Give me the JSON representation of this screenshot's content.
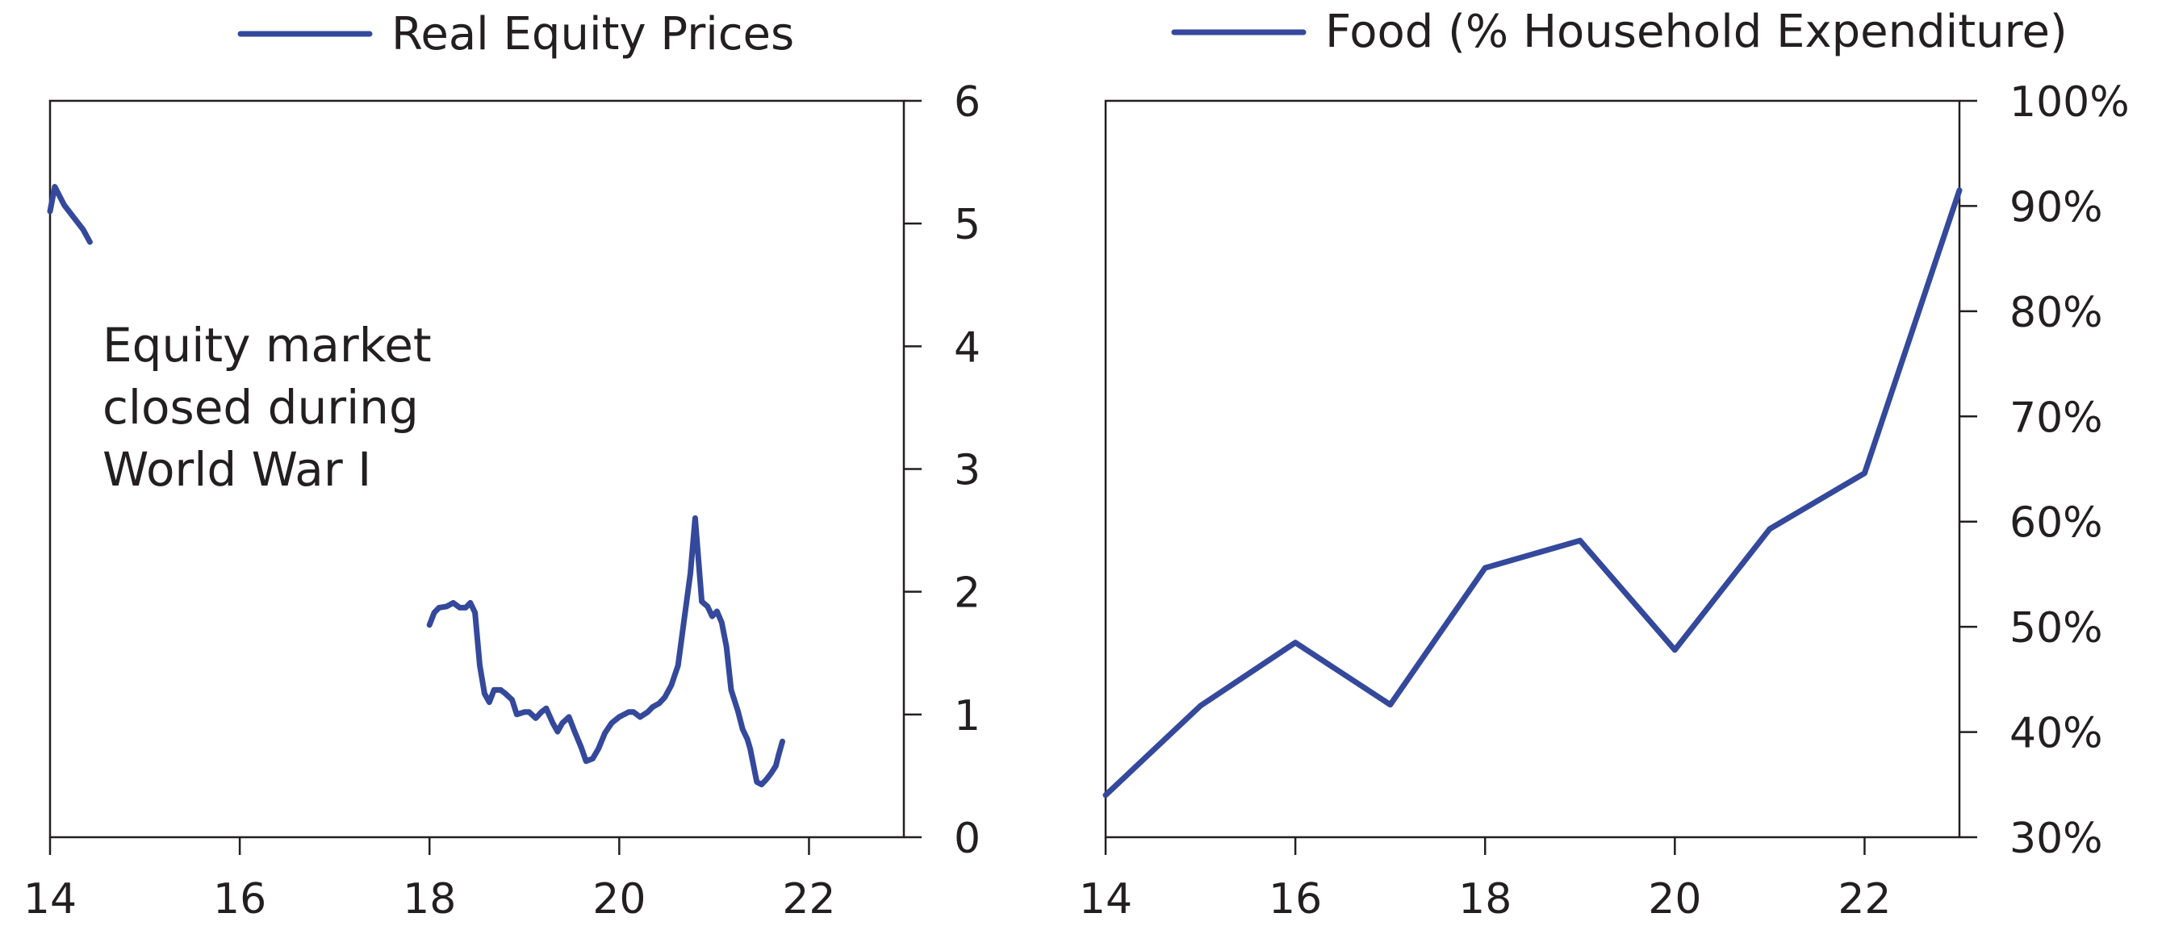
{
  "colors": {
    "series": "#34499b",
    "axis": "#231f20",
    "background": "#ffffff"
  },
  "chart_data": [
    {
      "type": "line",
      "legend": "Real Equity Prices",
      "x_ticks": [
        {
          "v": 14,
          "label": "14"
        },
        {
          "v": 16,
          "label": "16"
        },
        {
          "v": 18,
          "label": "18"
        },
        {
          "v": 20,
          "label": "20"
        },
        {
          "v": 22,
          "label": "22"
        }
      ],
      "y_ticks": [
        {
          "v": 0,
          "label": "0"
        },
        {
          "v": 1,
          "label": "1"
        },
        {
          "v": 2,
          "label": "2"
        },
        {
          "v": 3,
          "label": "3"
        },
        {
          "v": 4,
          "label": "4"
        },
        {
          "v": 5,
          "label": "5"
        },
        {
          "v": 6,
          "label": "6"
        }
      ],
      "xlim": [
        14,
        23
      ],
      "ylim": [
        0,
        6
      ],
      "y_axis_side": "right",
      "grid": false,
      "annotation": [
        "Equity market",
        "closed during",
        "World War I"
      ],
      "segments": [
        [
          [
            14.0,
            5.1
          ],
          [
            14.05,
            5.3
          ],
          [
            14.15,
            5.15
          ],
          [
            14.25,
            5.05
          ],
          [
            14.35,
            4.95
          ],
          [
            14.42,
            4.85
          ]
        ],
        [
          [
            18.0,
            1.73
          ],
          [
            18.05,
            1.83
          ],
          [
            18.1,
            1.87
          ],
          [
            18.18,
            1.88
          ],
          [
            18.25,
            1.91
          ],
          [
            18.32,
            1.87
          ],
          [
            18.38,
            1.87
          ],
          [
            18.43,
            1.91
          ],
          [
            18.48,
            1.83
          ],
          [
            18.53,
            1.4
          ],
          [
            18.58,
            1.17
          ],
          [
            18.63,
            1.1
          ],
          [
            18.68,
            1.2
          ],
          [
            18.75,
            1.2
          ],
          [
            18.8,
            1.17
          ],
          [
            18.87,
            1.12
          ],
          [
            18.92,
            1.0
          ],
          [
            19.0,
            1.02
          ],
          [
            19.05,
            1.02
          ],
          [
            19.12,
            0.97
          ],
          [
            19.18,
            1.02
          ],
          [
            19.23,
            1.05
          ],
          [
            19.3,
            0.93
          ],
          [
            19.35,
            0.86
          ],
          [
            19.4,
            0.93
          ],
          [
            19.47,
            0.98
          ],
          [
            19.53,
            0.86
          ],
          [
            19.6,
            0.73
          ],
          [
            19.65,
            0.62
          ],
          [
            19.72,
            0.64
          ],
          [
            19.78,
            0.72
          ],
          [
            19.85,
            0.85
          ],
          [
            19.92,
            0.93
          ],
          [
            20.0,
            0.98
          ],
          [
            20.05,
            1.0
          ],
          [
            20.1,
            1.02
          ],
          [
            20.15,
            1.02
          ],
          [
            20.22,
            0.98
          ],
          [
            20.3,
            1.02
          ],
          [
            20.35,
            1.06
          ],
          [
            20.42,
            1.09
          ],
          [
            20.48,
            1.14
          ],
          [
            20.55,
            1.24
          ],
          [
            20.62,
            1.4
          ],
          [
            20.68,
            1.75
          ],
          [
            20.75,
            2.15
          ],
          [
            20.8,
            2.6
          ],
          [
            20.87,
            1.92
          ],
          [
            20.93,
            1.88
          ],
          [
            20.98,
            1.8
          ],
          [
            21.03,
            1.84
          ],
          [
            21.08,
            1.75
          ],
          [
            21.13,
            1.55
          ],
          [
            21.18,
            1.2
          ],
          [
            21.25,
            1.03
          ],
          [
            21.3,
            0.88
          ],
          [
            21.35,
            0.8
          ],
          [
            21.38,
            0.72
          ],
          [
            21.45,
            0.45
          ],
          [
            21.5,
            0.43
          ],
          [
            21.55,
            0.47
          ],
          [
            21.6,
            0.52
          ],
          [
            21.65,
            0.58
          ],
          [
            21.68,
            0.67
          ],
          [
            21.72,
            0.78
          ]
        ]
      ]
    },
    {
      "type": "line",
      "legend": "Food (% Household Expenditure)",
      "x_ticks": [
        {
          "v": 14,
          "label": "14"
        },
        {
          "v": 16,
          "label": "16"
        },
        {
          "v": 18,
          "label": "18"
        },
        {
          "v": 20,
          "label": "20"
        },
        {
          "v": 22,
          "label": "22"
        }
      ],
      "y_ticks": [
        {
          "v": 30,
          "label": "30%"
        },
        {
          "v": 40,
          "label": "40%"
        },
        {
          "v": 50,
          "label": "50%"
        },
        {
          "v": 60,
          "label": "60%"
        },
        {
          "v": 70,
          "label": "70%"
        },
        {
          "v": 80,
          "label": "80%"
        },
        {
          "v": 90,
          "label": "90%"
        },
        {
          "v": 100,
          "label": "100%"
        }
      ],
      "xlim": [
        14,
        23
      ],
      "ylim": [
        30,
        100
      ],
      "y_axis_side": "right",
      "grid": false,
      "segments": [
        [
          [
            14,
            34
          ],
          [
            15,
            42.5
          ],
          [
            16,
            48.5
          ],
          [
            17,
            42.6
          ],
          [
            18,
            55.6
          ],
          [
            19,
            58.2
          ],
          [
            20,
            47.8
          ],
          [
            21,
            59.3
          ],
          [
            22,
            64.6
          ],
          [
            23,
            91.5
          ]
        ]
      ]
    }
  ]
}
